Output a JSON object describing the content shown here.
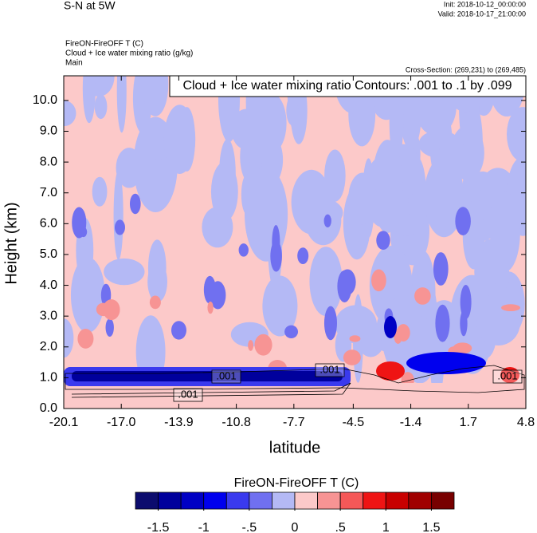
{
  "chart_data": {
    "type": "contour",
    "title": "S-N at 5W",
    "init_label": "Init: 2018-10-12_00:00:00",
    "valid_label": "Valid: 2018-10-17_21:00:00",
    "field_title": "FireON-FireOFF T   (C)",
    "contour_field_title": "Cloud + Ice water mixing ratio   (g/kg)",
    "subtitle": "Main",
    "cross_section": "Cross-Section: (269,231) to (269,485)",
    "contour_info": "Cloud + Ice water mixing ratio Contours: .001 to .1 by .099",
    "xlabel": "latitude",
    "ylabel": "Height (km)",
    "xlim": [
      -20.1,
      4.8
    ],
    "xticks": [
      -20.1,
      {
        "value": -17,
        "label": "-17.0"
      },
      -13.9,
      -10.8,
      -7.7,
      -4.5,
      -1.4,
      1.7,
      4.8
    ],
    "ylim": [
      0,
      10.8
    ],
    "yticks": [
      {
        "value": 0,
        "label": "0.0"
      },
      {
        "value": 1,
        "label": "1.0"
      },
      {
        "value": 2,
        "label": "2.0"
      },
      {
        "value": 3,
        "label": "3.0"
      },
      {
        "value": 4,
        "label": "4.0"
      },
      {
        "value": 5,
        "label": "5.0"
      },
      {
        "value": 6,
        "label": "6.0"
      },
      {
        "value": 7,
        "label": "7.0"
      },
      {
        "value": 8,
        "label": "8.0"
      },
      {
        "value": 9,
        "label": "9.0"
      },
      {
        "value": 10,
        "label": "10.0"
      }
    ],
    "contour_labels": [
      ".001",
      ".001",
      ".001",
      ".001"
    ],
    "colorbar": {
      "title": "FireON-FireOFF T  (C)",
      "lim": [
        -1.75,
        1.75
      ],
      "ticks": [
        -1.5,
        -1,
        {
          "value": -0.5,
          "label": "-.5"
        },
        0,
        {
          "value": 0.5,
          "label": ".5"
        },
        1,
        1.5
      ],
      "colors": [
        "#0c0c6e",
        "#00009c",
        "#0000c4",
        "#0000ee",
        "#3a3aee",
        "#7070f0",
        "#b4b9f5",
        "#fcc9c9",
        "#f79494",
        "#f55858",
        "#ef1414",
        "#c80000",
        "#a00000",
        "#780000"
      ]
    }
  }
}
